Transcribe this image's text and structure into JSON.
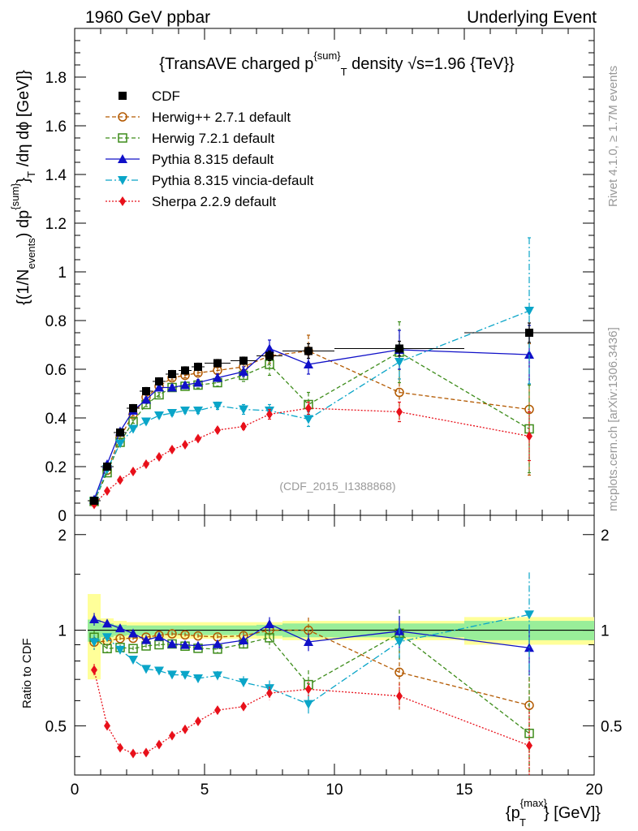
{
  "header": {
    "left_title": "1960 GeV ppbar",
    "right_title": "Underlying Event"
  },
  "side_labels": {
    "rivet": "Rivet 4.1.0, ≥ 1.7M events",
    "mcplots": "mcplots.cern.ch [arXiv:1306.3436]"
  },
  "chart_data": {
    "type": "scatter",
    "title": "{TransAVE charged p^{sum}_T density √s=1.96 {TeV}}",
    "title_parts": {
      "main": "{TransAVE charged p",
      "sup": "{sum}",
      "sub": "T",
      "tail": " density √s=1.96 {TeV}}"
    },
    "watermark": "(CDF_2015_I1388868)",
    "ylabel": "{(1/N_{events}) dp^{sum}_T /dη  dϕ [GeV]}",
    "ylabel_parts": {
      "a": "{(1/N",
      "a_sub": "events",
      "b": ") dp",
      "b_sup": "{sum}",
      "c": "}",
      "c_sub": "T",
      "d": " /dη  dϕ [GeV]}"
    },
    "xlabel": "{p_T^{max}} [GeV]}",
    "xlabel_parts": {
      "a": "{p",
      "a_sub": "T",
      "a_sup": "{max}",
      "b": "} [GeV]}"
    },
    "ratio_ylabel": "Ratio to CDF",
    "xlim": [
      0,
      20
    ],
    "ylim_main": [
      0,
      2
    ],
    "ylim_ratio": [
      0.35,
      2.3
    ],
    "x_ticks": [
      "0",
      "5",
      "10",
      "15",
      "20"
    ],
    "y_ticks_main": [
      "0",
      "0.2",
      "0.4",
      "0.6",
      "0.8",
      "1",
      "1.2",
      "1.4",
      "1.6",
      "1.8"
    ],
    "y_ticks_ratio": [
      "0.5",
      "1",
      "2"
    ],
    "bins": [
      [
        0.5,
        1.0
      ],
      [
        1.0,
        1.5
      ],
      [
        1.5,
        2.0
      ],
      [
        2.0,
        2.5
      ],
      [
        2.5,
        3.0
      ],
      [
        3.0,
        3.5
      ],
      [
        3.5,
        4.0
      ],
      [
        4.0,
        4.5
      ],
      [
        4.5,
        5.0
      ],
      [
        5.0,
        6.0
      ],
      [
        6.0,
        7.0
      ],
      [
        7.0,
        8.0
      ],
      [
        8.0,
        10.0
      ],
      [
        10.0,
        15.0
      ],
      [
        15.0,
        20.0
      ]
    ],
    "x": [
      0.75,
      1.25,
      1.75,
      2.25,
      2.75,
      3.25,
      3.75,
      4.25,
      4.75,
      5.5,
      6.5,
      7.5,
      9.0,
      12.5,
      17.5
    ],
    "band_inner": [
      0.08,
      0.05,
      0.04,
      0.035,
      0.035,
      0.035,
      0.035,
      0.035,
      0.035,
      0.035,
      0.035,
      0.04,
      0.05,
      0.05,
      0.07
    ],
    "band_outer": [
      0.3,
      0.09,
      0.07,
      0.06,
      0.06,
      0.06,
      0.06,
      0.06,
      0.06,
      0.06,
      0.06,
      0.06,
      0.07,
      0.07,
      0.1
    ],
    "series": [
      {
        "name": "CDF",
        "color": "#000000",
        "marker": "square-filled",
        "dash": "",
        "line": false,
        "values": [
          0.06,
          0.2,
          0.34,
          0.44,
          0.51,
          0.55,
          0.58,
          0.595,
          0.61,
          0.625,
          0.635,
          0.655,
          0.675,
          0.685,
          0.75
        ],
        "errors": [
          0.005,
          0.01,
          0.012,
          0.015,
          0.015,
          0.015,
          0.015,
          0.015,
          0.015,
          0.015,
          0.015,
          0.02,
          0.03,
          0.03,
          0.04
        ]
      },
      {
        "name": "Herwig++ 2.7.1 default",
        "color": "#b35900",
        "marker": "circle-open",
        "dash": "5,3",
        "line": true,
        "values": [
          0.055,
          0.185,
          0.32,
          0.415,
          0.485,
          0.53,
          0.565,
          0.575,
          0.585,
          0.595,
          0.61,
          0.655,
          0.675,
          0.505,
          0.435
        ],
        "errors": [
          0.003,
          0.005,
          0.006,
          0.007,
          0.008,
          0.008,
          0.009,
          0.01,
          0.01,
          0.012,
          0.02,
          0.03,
          0.065,
          0.12,
          0.27
        ]
      },
      {
        "name": "Herwig 7.2.1 default",
        "color": "#3d8c1a",
        "marker": "square-open",
        "dash": "5,3",
        "line": true,
        "values": [
          0.057,
          0.175,
          0.3,
          0.385,
          0.455,
          0.495,
          0.525,
          0.53,
          0.535,
          0.545,
          0.575,
          0.62,
          0.455,
          0.67,
          0.355
        ],
        "errors": [
          0.003,
          0.005,
          0.006,
          0.007,
          0.008,
          0.009,
          0.01,
          0.01,
          0.012,
          0.015,
          0.025,
          0.045,
          0.05,
          0.125,
          0.18
        ]
      },
      {
        "name": "Pythia 8.315 default",
        "color": "#1010c8",
        "marker": "triangle-up",
        "dash": "",
        "line": true,
        "values": [
          0.065,
          0.21,
          0.345,
          0.43,
          0.475,
          0.525,
          0.525,
          0.535,
          0.545,
          0.565,
          0.59,
          0.685,
          0.62,
          0.68,
          0.66
        ],
        "errors": [
          0.003,
          0.005,
          0.006,
          0.007,
          0.008,
          0.009,
          0.01,
          0.01,
          0.012,
          0.015,
          0.02,
          0.035,
          0.04,
          0.08,
          0.12
        ]
      },
      {
        "name": "Pythia 8.315 vincia-default",
        "color": "#0aa5c8",
        "marker": "triangle-down",
        "dash": "8,3,2,3",
        "line": true,
        "values": [
          0.055,
          0.19,
          0.295,
          0.355,
          0.385,
          0.41,
          0.42,
          0.43,
          0.43,
          0.45,
          0.435,
          0.43,
          0.395,
          0.63,
          0.84
        ],
        "errors": [
          0.003,
          0.005,
          0.006,
          0.007,
          0.008,
          0.009,
          0.01,
          0.01,
          0.012,
          0.015,
          0.02,
          0.025,
          0.03,
          0.07,
          0.3
        ]
      },
      {
        "name": "Sherpa 2.2.9 default",
        "color": "#e8101a",
        "marker": "diamond-filled",
        "dash": "2,2",
        "line": true,
        "values": [
          0.045,
          0.1,
          0.145,
          0.18,
          0.21,
          0.24,
          0.27,
          0.29,
          0.315,
          0.35,
          0.365,
          0.415,
          0.44,
          0.425,
          0.325
        ],
        "errors": [
          0.002,
          0.003,
          0.004,
          0.005,
          0.005,
          0.006,
          0.007,
          0.008,
          0.008,
          0.01,
          0.012,
          0.02,
          0.025,
          0.04,
          0.1
        ]
      }
    ]
  }
}
